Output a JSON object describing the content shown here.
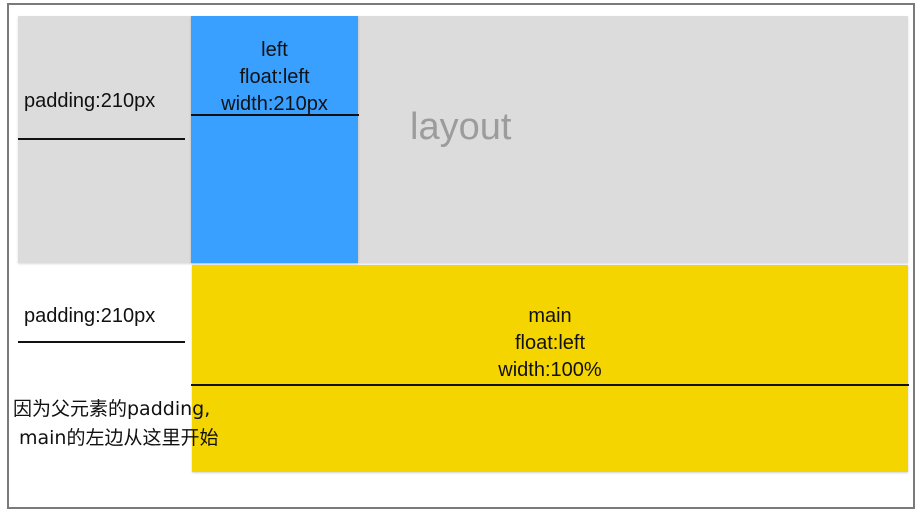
{
  "layout": {
    "label": "layout"
  },
  "left_box": {
    "line1": "left",
    "line2": "float:left",
    "line3": "width:210px"
  },
  "main_box": {
    "line1": "main",
    "line2": "float:left",
    "line3": "width:100%"
  },
  "padding_labels": {
    "top": "padding:210px",
    "bottom": "padding:210px"
  },
  "note": {
    "line1": "因为父元素的padding,",
    "line2": "main的左边从这里开始"
  },
  "colors": {
    "layout_bg": "#dcdcdd",
    "left_bg": "#3aa0ff",
    "main_bg": "#f5d500",
    "frame_border": "#7a7a7a"
  }
}
